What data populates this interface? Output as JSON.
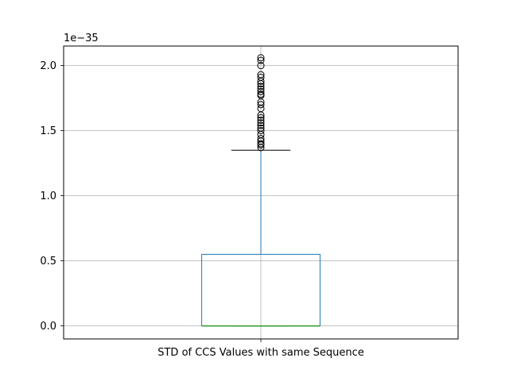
{
  "chart_data": {
    "type": "box",
    "categories": [
      "STD of CCS Values with same Sequence"
    ],
    "y_scale_label": "1e−35",
    "y_scale_factor": 1e-35,
    "ylim": [
      -0.1,
      2.15
    ],
    "y_ticks": [
      0.0,
      0.5,
      1.0,
      1.5,
      2.0
    ],
    "y_tick_labels": [
      "0.0",
      "0.5",
      "1.0",
      "1.5",
      "2.0"
    ],
    "grid": true,
    "boxes": [
      {
        "category": "STD of CCS Values with same Sequence",
        "whisker_low": 0.0,
        "q1": 0.0,
        "median": 0.0,
        "q3": 0.55,
        "whisker_high": 1.35,
        "outliers": [
          1.37,
          1.39,
          1.4,
          1.42,
          1.44,
          1.47,
          1.5,
          1.52,
          1.54,
          1.56,
          1.58,
          1.6,
          1.62,
          1.67,
          1.7,
          1.72,
          1.77,
          1.78,
          1.8,
          1.82,
          1.84,
          1.86,
          1.88,
          1.91,
          1.93,
          2.0,
          2.04,
          2.06
        ]
      }
    ],
    "colors": {
      "box": "#1f77b4",
      "median": "#2ca02c",
      "whisker": "#1f77b4",
      "caps": "#000000",
      "outlier": "#000000",
      "grid": "#b0b0b0"
    }
  }
}
